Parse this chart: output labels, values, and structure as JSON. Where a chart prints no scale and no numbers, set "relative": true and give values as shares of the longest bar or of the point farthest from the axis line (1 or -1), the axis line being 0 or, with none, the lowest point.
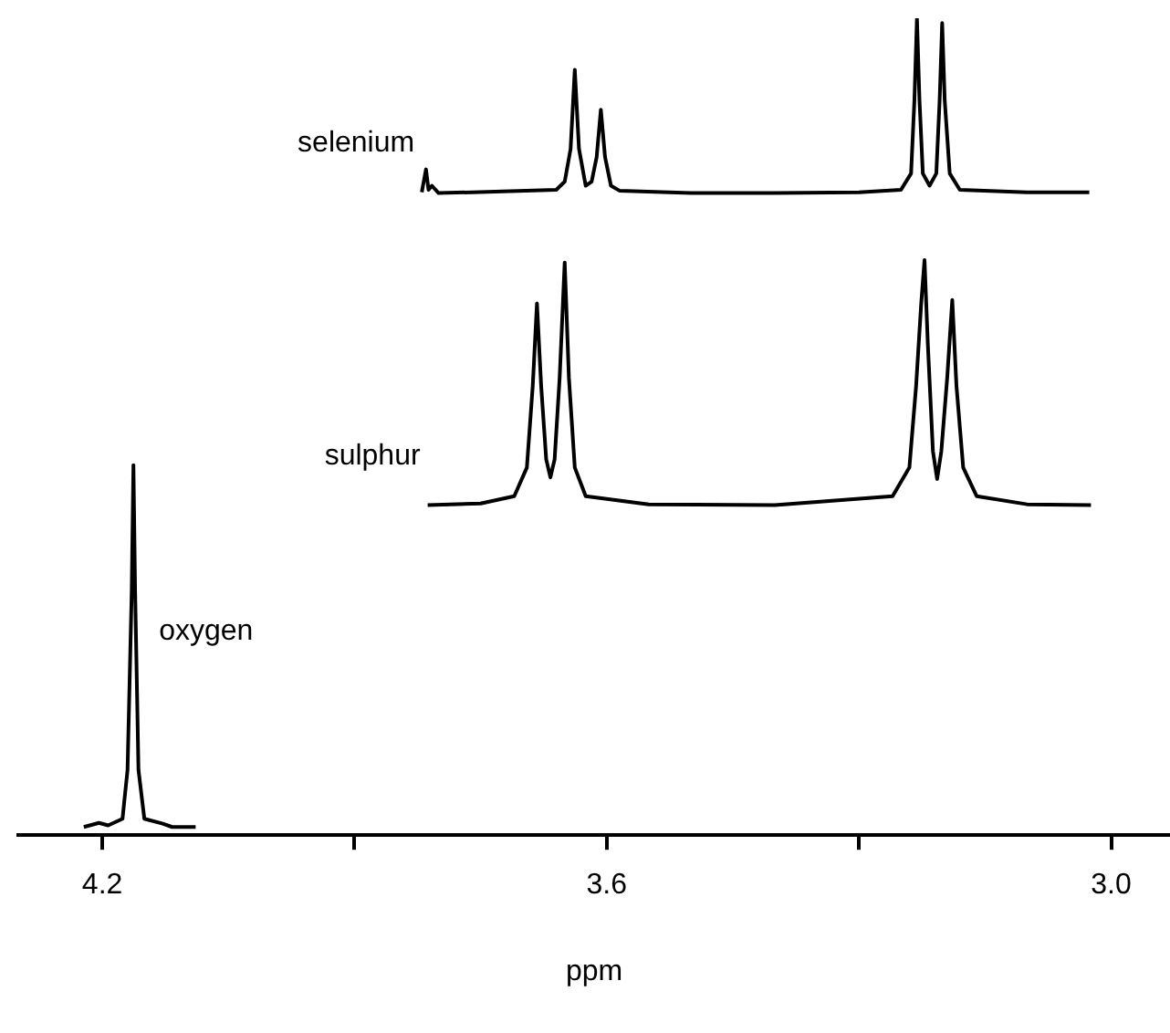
{
  "chart_data": {
    "type": "line",
    "xlabel": "ppm",
    "relative": true,
    "legend": false,
    "marker": "none",
    "grid": false,
    "xlim": [
      4.3,
      2.93
    ],
    "xticks": [
      4.2,
      {
        "value": 3.9,
        "label": null
      },
      3.6,
      {
        "value": 3.3,
        "label": null
      },
      {
        "value": 3,
        "label": "3.0"
      }
    ],
    "series": [
      {
        "name": "selenium",
        "color": "#000000",
        "x": [
          3.82,
          3.815,
          3.812,
          3.808,
          3.8,
          3.76,
          3.66,
          3.65,
          3.643,
          3.638,
          3.633,
          3.625,
          3.618,
          3.612,
          3.607,
          3.602,
          3.595,
          3.585,
          3.5,
          3.4,
          3.3,
          3.25,
          3.238,
          3.234,
          3.231,
          3.228,
          3.224,
          3.216,
          3.208,
          3.204,
          3.201,
          3.198,
          3.192,
          3.18,
          3.1,
          3.026
        ],
        "values": [
          0.787,
          0.815,
          0.79,
          0.795,
          0.786,
          0.787,
          0.79,
          0.8,
          0.84,
          0.937,
          0.84,
          0.795,
          0.8,
          0.83,
          0.888,
          0.83,
          0.795,
          0.789,
          0.786,
          0.786,
          0.787,
          0.79,
          0.81,
          0.9,
          1.0,
          0.9,
          0.81,
          0.795,
          0.81,
          0.9,
          0.994,
          0.9,
          0.81,
          0.79,
          0.787,
          0.787
        ]
      },
      {
        "name": "sulphur",
        "color": "#000000",
        "x": [
          3.813,
          3.75,
          3.71,
          3.695,
          3.688,
          3.683,
          3.678,
          3.672,
          3.667,
          3.662,
          3.656,
          3.65,
          3.645,
          3.638,
          3.625,
          3.55,
          3.4,
          3.26,
          3.24,
          3.232,
          3.226,
          3.222,
          3.218,
          3.212,
          3.207,
          3.202,
          3.195,
          3.189,
          3.184,
          3.176,
          3.16,
          3.1,
          3.024
        ],
        "values": [
          0.404,
          0.406,
          0.415,
          0.45,
          0.55,
          0.651,
          0.55,
          0.46,
          0.438,
          0.46,
          0.56,
          0.701,
          0.56,
          0.45,
          0.415,
          0.405,
          0.404,
          0.415,
          0.45,
          0.55,
          0.65,
          0.704,
          0.6,
          0.47,
          0.436,
          0.47,
          0.56,
          0.655,
          0.55,
          0.45,
          0.415,
          0.405,
          0.404
        ]
      },
      {
        "name": "oxygen",
        "color": "#000000",
        "x": [
          4.222,
          4.204,
          4.193,
          4.176,
          4.17,
          4.165,
          4.163,
          4.161,
          4.157,
          4.15,
          4.128,
          4.117,
          4.089
        ],
        "values": [
          0.01,
          0.015,
          0.012,
          0.02,
          0.08,
          0.3,
          0.453,
          0.3,
          0.08,
          0.02,
          0.014,
          0.01,
          0.01
        ]
      }
    ]
  }
}
